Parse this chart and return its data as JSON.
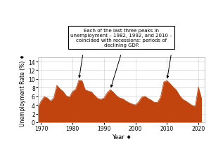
{
  "years": [
    1969,
    1970,
    1971,
    1972,
    1973,
    1974,
    1975,
    1976,
    1977,
    1978,
    1979,
    1980,
    1981,
    1982,
    1983,
    1984,
    1985,
    1986,
    1987,
    1988,
    1989,
    1990,
    1991,
    1992,
    1993,
    1994,
    1995,
    1996,
    1997,
    1998,
    1999,
    2000,
    2001,
    2002,
    2003,
    2004,
    2005,
    2006,
    2007,
    2008,
    2009,
    2010,
    2011,
    2012,
    2013,
    2014,
    2015,
    2016,
    2017,
    2018,
    2019,
    2020,
    2021
  ],
  "unemployment": [
    3.5,
    4.9,
    5.9,
    5.6,
    4.9,
    5.6,
    8.5,
    7.7,
    7.1,
    6.1,
    5.8,
    7.1,
    7.6,
    9.7,
    9.6,
    7.5,
    7.2,
    7.0,
    6.2,
    5.5,
    5.3,
    5.6,
    6.8,
    7.5,
    6.9,
    6.1,
    5.6,
    5.4,
    4.9,
    4.5,
    4.2,
    4.0,
    4.7,
    5.8,
    6.0,
    5.5,
    5.1,
    4.6,
    4.6,
    5.8,
    9.3,
    9.6,
    8.9,
    8.1,
    7.4,
    6.2,
    5.3,
    4.9,
    4.4,
    3.9,
    3.7,
    8.1,
    5.4
  ],
  "fill_color": "#c1440e",
  "line_color": "#c1440e",
  "bg_color": "#ffffff",
  "grid_color": "#cccccc",
  "annotation_text": "Each of the last three peaks in\nunemployment – 1982, 1992, and 2010 –\ncoincided with recessions: periods of\ndeclining GDP.",
  "arrow_peaks": [
    {
      "year": 1982,
      "value": 9.7
    },
    {
      "year": 1992,
      "value": 7.5
    },
    {
      "year": 2010,
      "value": 9.6
    }
  ],
  "xlabel": "Year ♦",
  "ylabel": "Unemployment Rate (%) ♦",
  "xlim": [
    1969,
    2022
  ],
  "ylim": [
    0,
    15
  ],
  "xticks": [
    1970,
    1980,
    1990,
    2000,
    2010,
    2020
  ],
  "yticks": [
    0,
    2,
    4,
    6,
    8,
    10,
    12,
    14
  ]
}
